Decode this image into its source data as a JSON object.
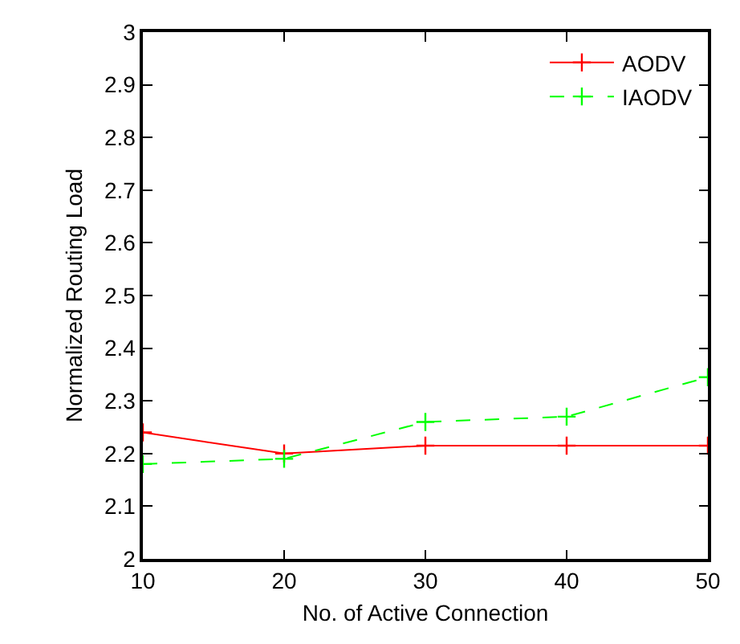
{
  "chart_data": {
    "type": "line",
    "xlabel": "No. of Active Connection",
    "ylabel": "Normalized Routing Load",
    "x": [
      10,
      20,
      30,
      40,
      50
    ],
    "series": [
      {
        "name": "AODV",
        "color": "#ff0000",
        "line_style": "solid",
        "values": [
          2.24,
          2.2,
          2.215,
          2.215,
          2.215
        ]
      },
      {
        "name": "IAODV",
        "color": "#00ff00",
        "line_style": "dashed",
        "values": [
          2.18,
          2.19,
          2.26,
          2.27,
          2.345
        ]
      }
    ],
    "marker": "cross",
    "xlim": [
      10,
      50
    ],
    "xticks": [
      10,
      20,
      30,
      40,
      50
    ],
    "ylim": [
      2,
      3
    ],
    "yticks": [
      2,
      2.1,
      2.2,
      2.3,
      2.4,
      2.5,
      2.6,
      2.7,
      2.8,
      2.9,
      3
    ],
    "legend": "top right"
  }
}
